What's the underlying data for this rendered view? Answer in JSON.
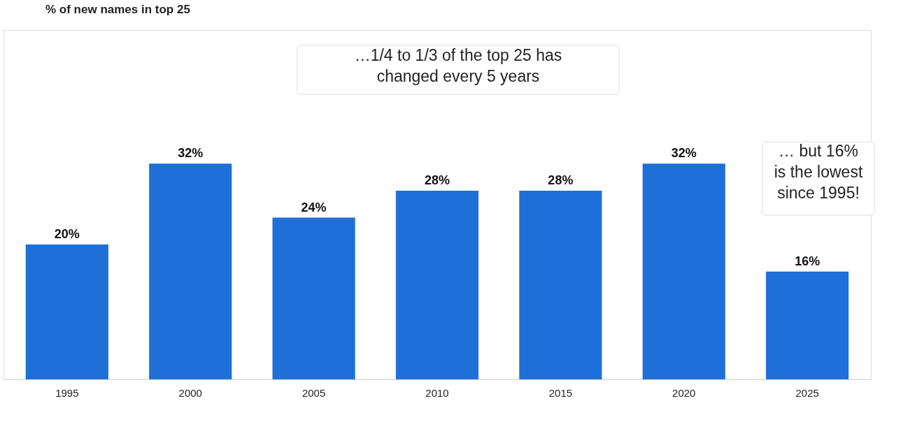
{
  "chart_data": {
    "type": "bar",
    "title": "% of new names in top 25",
    "categories": [
      "1995",
      "2000",
      "2005",
      "2010",
      "2015",
      "2020",
      "2025"
    ],
    "values": [
      20,
      32,
      24,
      28,
      28,
      32,
      16
    ],
    "value_labels": [
      "20%",
      "32%",
      "24%",
      "28%",
      "28%",
      "32%",
      "16%"
    ],
    "color": "#1f6fd9",
    "annotations": [
      "…1/4 to 1/3 of the top 25 has\nchanged every 5 years",
      "… but 16%\nis the lowest\nsince 1995!"
    ],
    "grid": false
  }
}
